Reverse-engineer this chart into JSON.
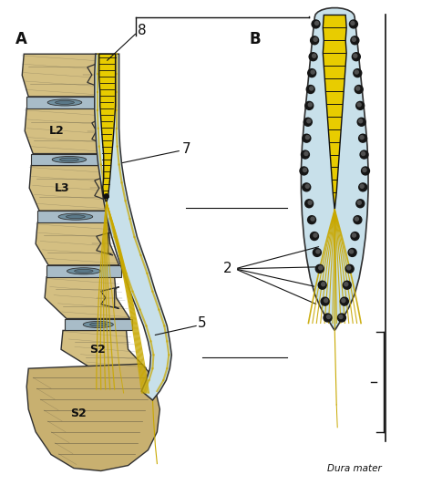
{
  "bg_color": "#ffffff",
  "label_A": "A",
  "label_B": "B",
  "label_8": "8",
  "label_7": "7",
  "label_5": "5",
  "label_2": "2",
  "label_L2": "L2",
  "label_L3": "L3",
  "label_S2": "S2",
  "label_dura": "Dura mater",
  "vert_color": "#d4bf82",
  "vert_color2": "#c9b472",
  "disc_color": "#a8bcc8",
  "disc_inner": "#7090a0",
  "cord_yellow": "#e8cc00",
  "cord_gold": "#c8a800",
  "canal_blue": "#c8e0ea",
  "nerve_gold": "#c8a800",
  "nerve_light": "#e0c840",
  "outline_dk": "#303030",
  "outline_med": "#505050",
  "black": "#111111",
  "sacrum_color": "#c8b070",
  "sacrum_hatching": "#b09850"
}
